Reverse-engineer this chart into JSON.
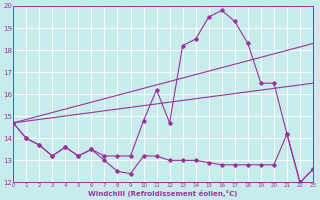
{
  "background_color": "#c8ecec",
  "grid_color": "#ffffff",
  "line_color": "#993399",
  "xlabel": "Windchill (Refroidissement éolien,°C)",
  "ylim": [
    12,
    20
  ],
  "xlim": [
    0,
    23
  ],
  "yticks": [
    12,
    13,
    14,
    15,
    16,
    17,
    18,
    19,
    20
  ],
  "xticks": [
    0,
    1,
    2,
    3,
    4,
    5,
    6,
    7,
    8,
    9,
    10,
    11,
    12,
    13,
    14,
    15,
    16,
    17,
    18,
    19,
    20,
    21,
    22,
    23
  ],
  "series_zigzag": {
    "x": [
      0,
      1,
      2,
      3,
      4,
      5,
      6,
      7,
      8,
      9,
      10,
      11,
      12,
      13,
      14,
      15,
      16,
      17,
      18,
      19,
      20,
      21,
      22,
      23
    ],
    "y": [
      14.7,
      14.0,
      13.7,
      13.2,
      13.6,
      13.2,
      13.5,
      13.0,
      12.5,
      12.4,
      13.2,
      13.2,
      13.0,
      13.0,
      13.0,
      12.9,
      12.8,
      12.8,
      12.8,
      12.8,
      12.8,
      14.2,
      12.0,
      12.6
    ]
  },
  "series_peak": {
    "x": [
      0,
      1,
      2,
      3,
      4,
      5,
      6,
      7,
      8,
      9,
      10,
      11,
      12,
      13,
      14,
      15,
      16,
      17,
      18,
      19,
      20,
      21,
      22,
      23
    ],
    "y": [
      14.7,
      14.0,
      13.7,
      13.2,
      13.6,
      13.2,
      13.5,
      13.2,
      13.2,
      13.2,
      14.8,
      16.2,
      14.7,
      18.2,
      18.5,
      19.5,
      19.8,
      19.3,
      18.3,
      16.5,
      16.5,
      14.2,
      12.0,
      12.6
    ]
  },
  "line_rising": {
    "x": [
      0,
      23
    ],
    "y": [
      14.7,
      18.3
    ]
  },
  "line_falling": {
    "x": [
      0,
      23
    ],
    "y": [
      14.7,
      16.5
    ]
  }
}
